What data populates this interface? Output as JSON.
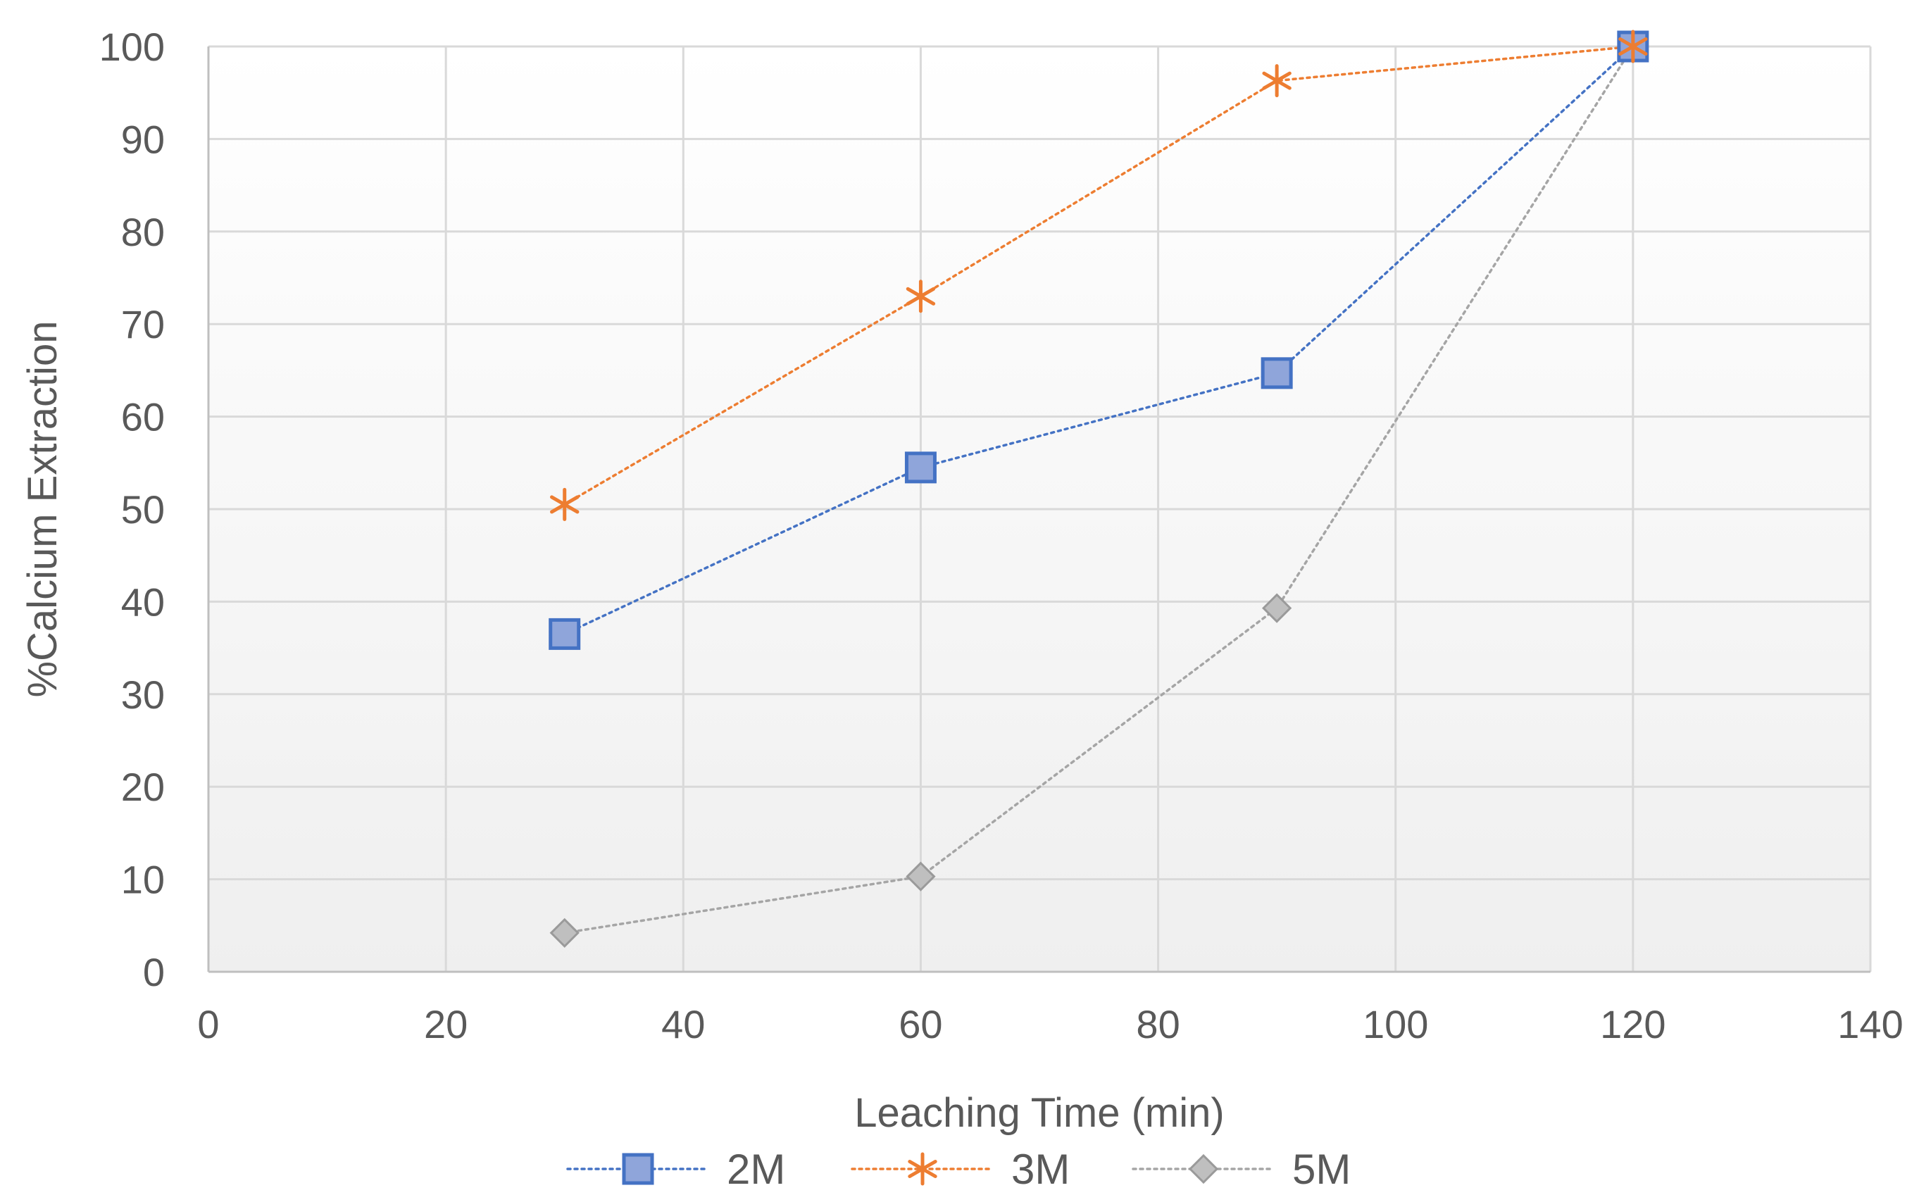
{
  "chart_data": {
    "type": "line",
    "title": "",
    "xlabel": "Leaching Time (min)",
    "ylabel": "%Calcium Extraction",
    "xlim": [
      0,
      140
    ],
    "ylim": [
      0,
      100
    ],
    "xticks": [
      0,
      20,
      40,
      60,
      80,
      100,
      120,
      140
    ],
    "yticks": [
      0,
      10,
      20,
      30,
      40,
      50,
      60,
      70,
      80,
      90,
      100
    ],
    "grid": true,
    "legend_position": "bottom",
    "series": [
      {
        "name": "2M",
        "marker": "square",
        "line_style": "dotted",
        "color": "#4472C4",
        "fill": "#8FA5DA",
        "x": [
          30,
          60,
          90,
          120
        ],
        "y": [
          36.5,
          54.5,
          64.7,
          100
        ]
      },
      {
        "name": "3M",
        "marker": "asterisk",
        "line_style": "dotted",
        "color": "#ED7D31",
        "x": [
          30,
          60,
          90,
          120
        ],
        "y": [
          50.5,
          73,
          96.3,
          100
        ]
      },
      {
        "name": "5M",
        "marker": "diamond",
        "line_style": "dotted",
        "color": "#A5A5A5",
        "fill": "#BFBFBF",
        "x": [
          30,
          60,
          90,
          120
        ],
        "y": [
          4.2,
          10.3,
          39.3,
          100
        ]
      }
    ]
  }
}
